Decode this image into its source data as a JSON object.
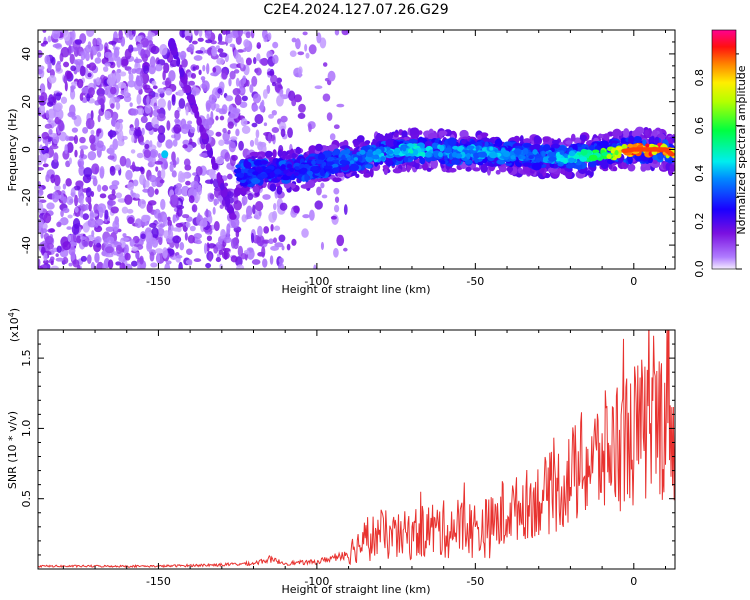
{
  "title": "C2E4.2024.127.07.26.G29",
  "chart_data": [
    {
      "type": "heatmap",
      "xlabel": "Height of straight line (km)",
      "ylabel": "Frequency (Hz)",
      "xlim": [
        -188,
        13
      ],
      "ylim": [
        -50,
        50
      ],
      "xticks": [
        -150,
        -100,
        -50,
        0
      ],
      "yticks": [
        -40,
        -20,
        0,
        20,
        40
      ],
      "colorbar": {
        "label": "Normalized spectral amplitude",
        "range": [
          0,
          1
        ],
        "ticks": [
          0.0,
          0.2,
          0.4,
          0.6,
          0.8
        ]
      },
      "colors": {
        "scale": [
          "#f2e6ff",
          "#8a2be2",
          "#0000ff",
          "#00ffff",
          "#00ff00",
          "#ffff00",
          "#ff0000",
          "#ff0080"
        ]
      },
      "ridge": {
        "x": [
          -125,
          -110,
          -100,
          -90,
          -80,
          -70,
          -60,
          -50,
          -40,
          -30,
          -20,
          -10,
          0,
          10,
          13
        ],
        "freq": [
          -10,
          -9,
          -7,
          -4,
          -2,
          0,
          -1,
          -1,
          -2,
          -3,
          -3,
          -2,
          0,
          0,
          -3
        ],
        "amplitude": [
          0.3,
          0.25,
          0.3,
          0.35,
          0.4,
          0.45,
          0.4,
          0.4,
          0.4,
          0.35,
          0.45,
          0.6,
          0.85,
          0.9,
          0.7
        ]
      },
      "noise_region_x": [
        -188,
        -105
      ]
    },
    {
      "type": "line",
      "xlabel": "Height of straight line (km)",
      "ylabel": "SNR (10 * v/v)",
      "y_multiplier": "(x10",
      "y_multiplier_exp": "4",
      "y_multiplier_close": ")",
      "xlim": [
        -188,
        13
      ],
      "ylim": [
        0,
        1.7
      ],
      "xticks": [
        -150,
        -100,
        -50,
        0
      ],
      "yticks": [
        0.5,
        1.0,
        1.5
      ],
      "colors": {
        "line": "#e8322f"
      },
      "series": [
        {
          "x": [
            -188,
            -170,
            -150,
            -130,
            -120,
            -115,
            -110,
            -100,
            -95,
            -90,
            -85,
            -80,
            -75,
            -70,
            -65,
            -60,
            -55,
            -50,
            -45,
            -40,
            -35,
            -30,
            -25,
            -20,
            -15,
            -10,
            -5,
            0,
            5,
            8,
            10,
            11,
            12,
            13
          ],
          "y": [
            0.02,
            0.02,
            0.02,
            0.03,
            0.04,
            0.07,
            0.04,
            0.05,
            0.08,
            0.12,
            0.2,
            0.25,
            0.22,
            0.25,
            0.28,
            0.28,
            0.3,
            0.28,
            0.3,
            0.4,
            0.45,
            0.5,
            0.55,
            0.65,
            0.75,
            0.8,
            0.9,
            0.95,
            1.0,
            1.05,
            1.1,
            1.45,
            1.1,
            0.75
          ]
        }
      ]
    }
  ]
}
